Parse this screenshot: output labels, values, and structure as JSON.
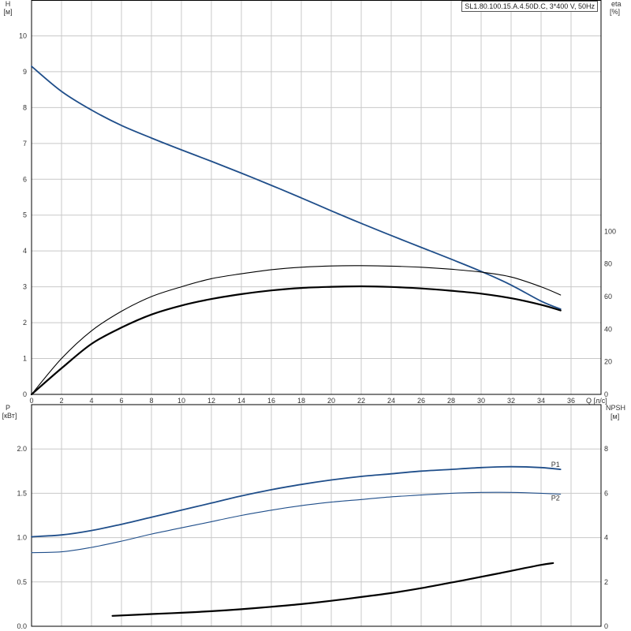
{
  "title": "SL1.80.100.15.A.4.50D.C, 3*400 V, 50Hz",
  "colors": {
    "blue": "#1f4e8a",
    "black": "#000000",
    "grid": "#c8c8c8",
    "frame": "#000000"
  },
  "chart_data": [
    {
      "type": "line",
      "name": "head-efficiency",
      "xlabel": "Q [л/с]",
      "ylabel": "H [м]",
      "y2label": "eta [%]",
      "xlim": [
        0,
        38
      ],
      "ylim": [
        0,
        11
      ],
      "y2lim": [
        0,
        242
      ],
      "xticks": [
        0,
        2,
        4,
        6,
        8,
        10,
        12,
        14,
        16,
        18,
        20,
        22,
        24,
        26,
        28,
        30,
        32,
        34,
        36
      ],
      "yticks": [
        0,
        1,
        2,
        3,
        4,
        5,
        6,
        7,
        8,
        9,
        10
      ],
      "y2ticks": [
        0,
        20,
        40,
        60,
        80,
        100
      ],
      "grid": true,
      "series": [
        {
          "key": "H",
          "axis": "left",
          "color": "#1f4e8a",
          "width": 1.8,
          "x": [
            0,
            2,
            4,
            6,
            8,
            10,
            12,
            14,
            16,
            18,
            20,
            22,
            24,
            26,
            28,
            30,
            32,
            34,
            35.3
          ],
          "y": [
            9.15,
            8.45,
            7.93,
            7.5,
            7.15,
            6.82,
            6.5,
            6.17,
            5.83,
            5.48,
            5.12,
            4.77,
            4.43,
            4.1,
            3.77,
            3.43,
            3.05,
            2.6,
            2.38
          ]
        },
        {
          "key": "eta-thin",
          "axis": "right",
          "color": "#000000",
          "width": 1.1,
          "x": [
            0,
            2,
            4,
            6,
            8,
            10,
            12,
            14,
            16,
            18,
            20,
            22,
            24,
            26,
            28,
            30,
            32,
            34,
            35.3
          ],
          "y": [
            0,
            22,
            39,
            51,
            60,
            66,
            71,
            74,
            76.5,
            78,
            78.8,
            79,
            78.7,
            78,
            76.8,
            75,
            72,
            66,
            61
          ]
        },
        {
          "key": "eta-thick",
          "axis": "right",
          "color": "#000000",
          "width": 2.2,
          "x": [
            0,
            2,
            4,
            6,
            8,
            10,
            12,
            14,
            16,
            18,
            20,
            22,
            24,
            26,
            28,
            30,
            32,
            34,
            35.3
          ],
          "y": [
            0,
            16,
            31,
            41,
            49,
            54.5,
            58.5,
            61.5,
            63.8,
            65.3,
            66,
            66.3,
            65.9,
            65,
            63.6,
            61.8,
            59,
            55,
            51.5
          ]
        }
      ]
    },
    {
      "type": "line",
      "name": "power-npsh",
      "ylabel": "P [кВт]",
      "y2label": "NPSH [м]",
      "xlim": [
        0,
        38
      ],
      "ylim": [
        0,
        2.5
      ],
      "y2lim": [
        0,
        10
      ],
      "yticks": [
        0.0,
        0.5,
        1.0,
        1.5,
        2.0
      ],
      "yticklabels": [
        "0.0",
        "0.5",
        "1.0",
        "1.5",
        "2.0"
      ],
      "y2ticks": [
        0,
        2,
        4,
        6,
        8
      ],
      "grid": true,
      "series": [
        {
          "key": "P1",
          "name": "P1",
          "axis": "left",
          "color": "#1f4e8a",
          "width": 1.8,
          "x": [
            0,
            2,
            4,
            6,
            8,
            10,
            12,
            14,
            16,
            18,
            20,
            22,
            24,
            26,
            28,
            30,
            32,
            34,
            35.3
          ],
          "y": [
            1.01,
            1.03,
            1.08,
            1.15,
            1.23,
            1.31,
            1.39,
            1.47,
            1.54,
            1.6,
            1.65,
            1.69,
            1.72,
            1.75,
            1.77,
            1.79,
            1.8,
            1.79,
            1.77
          ]
        },
        {
          "key": "P2",
          "name": "P2",
          "axis": "left",
          "color": "#1f4e8a",
          "width": 1.1,
          "x": [
            0,
            2,
            4,
            6,
            8,
            10,
            12,
            14,
            16,
            18,
            20,
            22,
            24,
            26,
            28,
            30,
            32,
            34,
            35.3
          ],
          "y": [
            0.83,
            0.84,
            0.89,
            0.96,
            1.04,
            1.11,
            1.18,
            1.25,
            1.31,
            1.36,
            1.4,
            1.43,
            1.46,
            1.48,
            1.5,
            1.51,
            1.51,
            1.5,
            1.49
          ]
        },
        {
          "key": "NPSH",
          "axis": "right",
          "color": "#000000",
          "width": 2.2,
          "x": [
            5.4,
            8,
            10,
            12,
            14,
            16,
            18,
            20,
            22,
            24,
            26,
            28,
            30,
            32,
            34,
            34.8
          ],
          "y": [
            0.47,
            0.55,
            0.61,
            0.68,
            0.77,
            0.88,
            1.0,
            1.15,
            1.32,
            1.5,
            1.72,
            1.97,
            2.23,
            2.5,
            2.77,
            2.85
          ]
        }
      ]
    }
  ]
}
